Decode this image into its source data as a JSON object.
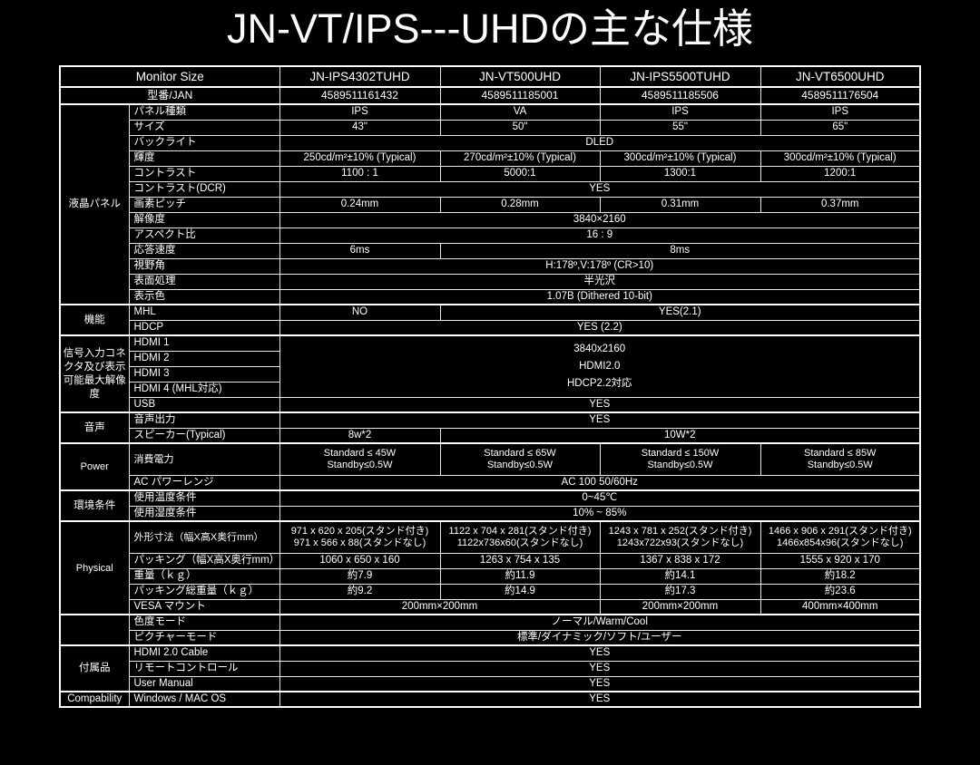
{
  "title": "JN-VT/IPS---UHDの主な仕様",
  "colors": {
    "background": "#000000",
    "text": "#ffffff",
    "border": "#ffffff"
  },
  "table": {
    "header": {
      "size_label": "Monitor Size",
      "models": [
        "JN-IPS4302TUHD",
        "JN-VT500UHD",
        "JN-IPS5500TUHD",
        "JN-VT6500UHD"
      ]
    },
    "rows": [
      {
        "sec": true,
        "jan": true,
        "label": "型番/JAN",
        "labelSpan": 2,
        "cells": [
          {
            "t": "4589511161432"
          },
          {
            "t": "4589511185001"
          },
          {
            "t": "4589511185506"
          },
          {
            "t": "4589511176504"
          }
        ]
      },
      {
        "sec": true,
        "group": {
          "label": "液晶パネル",
          "span": 13
        },
        "label": "パネル種類",
        "cells": [
          {
            "t": "IPS"
          },
          {
            "t": "VA"
          },
          {
            "t": "IPS"
          },
          {
            "t": "IPS"
          }
        ]
      },
      {
        "label": "サイズ",
        "cells": [
          {
            "t": "43\""
          },
          {
            "t": "50\""
          },
          {
            "t": "55\""
          },
          {
            "t": "65\""
          }
        ]
      },
      {
        "label": "バックライト",
        "cells": [
          {
            "t": "DLED",
            "c": 4
          }
        ]
      },
      {
        "label": "輝度",
        "cells": [
          {
            "t": "250cd/m²±10% (Typical)"
          },
          {
            "t": "270cd/m²±10% (Typical)"
          },
          {
            "t": "300cd/m²±10% (Typical)"
          },
          {
            "t": "300cd/m²±10% (Typical)"
          }
        ]
      },
      {
        "label": "コントラスト",
        "cells": [
          {
            "t": "1100 : 1"
          },
          {
            "t": "5000:1"
          },
          {
            "t": "1300:1"
          },
          {
            "t": "1200:1"
          }
        ]
      },
      {
        "label": "コントラスト(DCR)",
        "cells": [
          {
            "t": "YES",
            "c": 4
          }
        ]
      },
      {
        "label": "画素ピッチ",
        "cells": [
          {
            "t": "0.24mm"
          },
          {
            "t": "0.28mm"
          },
          {
            "t": "0.31mm"
          },
          {
            "t": "0.37mm"
          }
        ]
      },
      {
        "label": "解像度",
        "cells": [
          {
            "t": "3840×2160",
            "c": 4
          }
        ]
      },
      {
        "label": "アスペクト比",
        "cells": [
          {
            "t": "16 : 9",
            "c": 4
          }
        ]
      },
      {
        "label": "応答速度",
        "cells": [
          {
            "t": "6ms"
          },
          {
            "t": "8ms",
            "c": 3
          }
        ]
      },
      {
        "label": "視野角",
        "cells": [
          {
            "t": "H:178º,V:178º (CR>10)",
            "c": 4
          }
        ]
      },
      {
        "label": "表面処理",
        "cells": [
          {
            "t": "半光沢",
            "c": 4
          }
        ]
      },
      {
        "label": "表示色",
        "cells": [
          {
            "t": "1.07B (Dithered 10-bit)",
            "c": 4
          }
        ]
      },
      {
        "sec": true,
        "group": {
          "label": "機能",
          "span": 2
        },
        "label": "MHL",
        "cells": [
          {
            "t": "NO"
          },
          {
            "t": "YES(2.1)",
            "c": 3
          }
        ]
      },
      {
        "label": "HDCP",
        "cells": [
          {
            "t": "YES (2.2)",
            "c": 4
          }
        ]
      },
      {
        "sec": true,
        "group": {
          "label": "信号入力コネクタ及び表示可能最大解像度",
          "span": 5
        },
        "label": "HDMI 1",
        "cells": [
          {
            "c": 4,
            "r": 4,
            "lines": [
              "3840x2160",
              "HDMI2.0",
              "HDCP2.2対応"
            ]
          }
        ]
      },
      {
        "label": "HDMI 2",
        "cells": []
      },
      {
        "label": "HDMI 3",
        "cells": []
      },
      {
        "label": "HDMI 4 (MHL対応)",
        "cells": []
      },
      {
        "label": "USB",
        "cells": [
          {
            "t": "YES",
            "c": 4
          }
        ]
      },
      {
        "sec": true,
        "group": {
          "label": "音声",
          "span": 2
        },
        "label": "音声出力",
        "cells": [
          {
            "t": "YES",
            "c": 4
          }
        ]
      },
      {
        "label": "スピーカー(Typical)",
        "cells": [
          {
            "t": "8w*2"
          },
          {
            "t": "10W*2",
            "c": 3
          }
        ]
      },
      {
        "sec": true,
        "h2": true,
        "group": {
          "label": "Power",
          "span": 2
        },
        "label": "消費電力",
        "cells": [
          {
            "lines": [
              "Standard ≤ 45W",
              "Standby≤0.5W"
            ]
          },
          {
            "lines": [
              "Standard ≤ 65W",
              "Standby≤0.5W"
            ]
          },
          {
            "lines": [
              "Standard ≤ 150W",
              "Standby≤0.5W"
            ]
          },
          {
            "lines": [
              "Standard ≤ 85W",
              "Standby≤0.5W"
            ]
          }
        ]
      },
      {
        "label": "AC パワーレンジ",
        "cells": [
          {
            "t": "AC 100 50/60Hz",
            "c": 4
          }
        ]
      },
      {
        "sec": true,
        "group": {
          "label": "環境条件",
          "span": 2
        },
        "label": "使用温度条件",
        "cells": [
          {
            "t": "0~45℃",
            "c": 4
          }
        ]
      },
      {
        "label": "使用湿度条件",
        "cells": [
          {
            "t": "10% ~ 85%",
            "c": 4
          }
        ]
      },
      {
        "sec": true,
        "h2": true,
        "group": {
          "label": "Physical",
          "span": 5
        },
        "label": "外形寸法（幅X高X奥行mm）",
        "cells": [
          {
            "lines": [
              "971 x 620 x 205(スタンド付き)",
              "971 x 566 x 88(スタンドなし)"
            ]
          },
          {
            "lines": [
              "1122 x 704 x 281(スタンド付き)",
              "1122x736x60(スタンドなし)"
            ]
          },
          {
            "lines": [
              "1243 x 781 x 252(スタンド付き)",
              "1243x722x93(スタンドなし)"
            ]
          },
          {
            "lines": [
              "1466 x 906 x 291(スタンド付き)",
              "1466x854x96(スタンドなし)"
            ]
          }
        ]
      },
      {
        "label": "パッキング（幅X高X奥行mm）",
        "cells": [
          {
            "t": "1060 x 650 x 160"
          },
          {
            "t": "1263 x 754 x 135"
          },
          {
            "t": "1367 x 838 x 172"
          },
          {
            "t": "1555 x 920 x 170"
          }
        ]
      },
      {
        "label": "重量（ｋｇ）",
        "cells": [
          {
            "t": "約7.9"
          },
          {
            "t": "約11.9"
          },
          {
            "t": "約14.1"
          },
          {
            "t": "約18.2"
          }
        ]
      },
      {
        "label": "パッキング総重量（ｋｇ）",
        "cells": [
          {
            "t": "約9.2"
          },
          {
            "t": "約14.9"
          },
          {
            "t": "約17.3"
          },
          {
            "t": "約23.6"
          }
        ]
      },
      {
        "label": "VESA マウント",
        "cells": [
          {
            "t": "200mm×200mm",
            "c": 2
          },
          {
            "t": "200mm×200mm"
          },
          {
            "t": "400mm×400mm"
          }
        ]
      },
      {
        "sec": true,
        "group": {
          "label": "",
          "span": 2
        },
        "label": "色度モード",
        "cells": [
          {
            "t": "ノーマル/Warm/Cool",
            "c": 4
          }
        ]
      },
      {
        "label": "ピクチャーモード",
        "cells": [
          {
            "t": "標準/ダイナミック/ソフト/ユーザー",
            "c": 4
          }
        ]
      },
      {
        "sec": true,
        "group": {
          "label": "付属品",
          "span": 3
        },
        "label": "HDMI 2.0 Cable",
        "cells": [
          {
            "t": "YES",
            "c": 4
          }
        ]
      },
      {
        "label": "リモートコントロール",
        "cells": [
          {
            "t": "YES",
            "c": 4
          }
        ]
      },
      {
        "label": "User Manual",
        "cells": [
          {
            "t": "YES",
            "c": 4
          }
        ]
      },
      {
        "sec": true,
        "group": {
          "label": "Compability",
          "span": 1
        },
        "label": "Windows / MAC OS",
        "cells": [
          {
            "t": "YES",
            "c": 4
          }
        ]
      }
    ]
  }
}
